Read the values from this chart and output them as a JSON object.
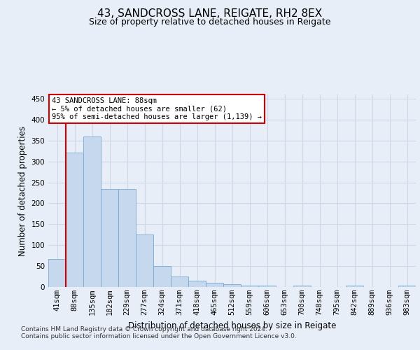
{
  "title1": "43, SANDCROSS LANE, REIGATE, RH2 8EX",
  "title2": "Size of property relative to detached houses in Reigate",
  "xlabel": "Distribution of detached houses by size in Reigate",
  "ylabel": "Number of detached properties",
  "categories": [
    "41sqm",
    "88sqm",
    "135sqm",
    "182sqm",
    "229sqm",
    "277sqm",
    "324sqm",
    "371sqm",
    "418sqm",
    "465sqm",
    "512sqm",
    "559sqm",
    "606sqm",
    "653sqm",
    "700sqm",
    "748sqm",
    "795sqm",
    "842sqm",
    "889sqm",
    "936sqm",
    "983sqm"
  ],
  "values": [
    67,
    322,
    360,
    235,
    235,
    126,
    50,
    25,
    15,
    10,
    6,
    4,
    4,
    0,
    4,
    0,
    0,
    4,
    0,
    0,
    4
  ],
  "bar_color": "#c5d8ee",
  "bar_edge_color": "#7aaace",
  "highlight_index": 1,
  "highlight_line_color": "#cc0000",
  "ylim": [
    0,
    460
  ],
  "yticks": [
    0,
    50,
    100,
    150,
    200,
    250,
    300,
    350,
    400,
    450
  ],
  "annotation_line1": "43 SANDCROSS LANE: 88sqm",
  "annotation_line2": "← 5% of detached houses are smaller (62)",
  "annotation_line3": "95% of semi-detached houses are larger (1,139) →",
  "annotation_box_color": "#ffffff",
  "annotation_border_color": "#cc0000",
  "footer_text": "Contains HM Land Registry data © Crown copyright and database right 2024.\nContains public sector information licensed under the Open Government Licence v3.0.",
  "background_color": "#e8eef8",
  "grid_color": "#d0d8e8",
  "title1_fontsize": 11,
  "title2_fontsize": 9,
  "xlabel_fontsize": 8.5,
  "ylabel_fontsize": 8.5,
  "tick_fontsize": 7.5,
  "annotation_fontsize": 7.5,
  "footer_fontsize": 6.5
}
